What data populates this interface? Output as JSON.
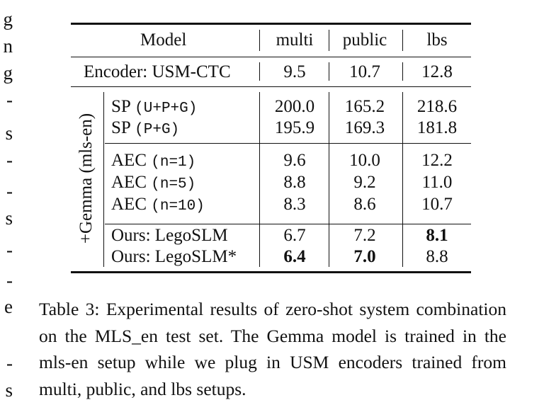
{
  "left_column_fragments": [
    "g",
    "n",
    "g",
    "-",
    "s",
    "-",
    "-",
    "s",
    "-",
    "-",
    "e",
    "-",
    "s"
  ],
  "table": {
    "headers": [
      "Model",
      "multi",
      "public",
      "lbs"
    ],
    "encoder_row": {
      "label": "Encoder: USM-CTC",
      "values": [
        "9.5",
        "10.7",
        "12.8"
      ]
    },
    "group_label": "+Gemma (mls-en)",
    "rows": [
      {
        "name": "SP",
        "config": "(U+P+G)",
        "values": [
          "200.0",
          "165.2",
          "218.6"
        ]
      },
      {
        "name": "SP",
        "config": "(P+G)",
        "values": [
          "195.9",
          "169.3",
          "181.8"
        ]
      },
      {
        "name": "AEC",
        "config": "(n=1)",
        "values": [
          "9.6",
          "10.0",
          "12.2"
        ]
      },
      {
        "name": "AEC",
        "config": "(n=5)",
        "values": [
          "8.8",
          "9.2",
          "11.0"
        ]
      },
      {
        "name": "AEC",
        "config": "(n=10)",
        "values": [
          "8.3",
          "8.6",
          "10.7"
        ]
      },
      {
        "name": "Ours: LegoSLM",
        "config": "",
        "values": [
          "6.7",
          "7.2",
          "8.1"
        ]
      },
      {
        "name": "Ours: LegoSLM*",
        "config": "",
        "values": [
          "6.4",
          "7.0",
          "8.8"
        ]
      }
    ]
  },
  "caption": "Table 3: Experimental results of zero-shot system combination on the MLS_en test set. The Gemma model is trained in the mls-en setup while we plug in USM encoders trained from multi, public, and lbs setups."
}
